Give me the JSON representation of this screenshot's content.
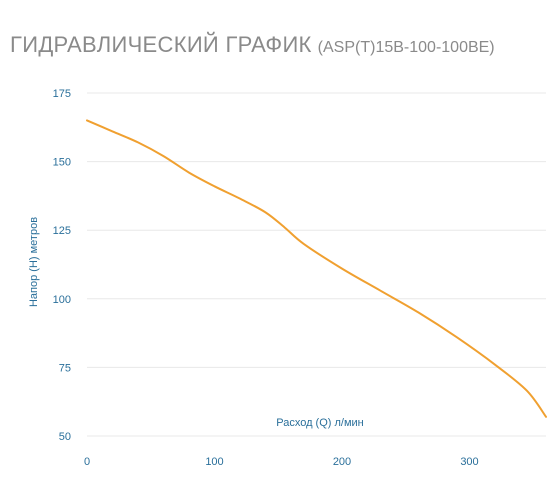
{
  "page": {
    "title_main": "ГИДРАВЛИЧЕСКИЙ ГРАФИК",
    "title_model": "(ASP(T)15B-100-100BE)"
  },
  "colors": {
    "curve": "#f0a030",
    "axis_text": "#2a6f9a",
    "gridline": "#e8e8e8",
    "title": "#8a8a8a"
  },
  "chart_data": {
    "type": "line",
    "title": "ГИДРАВЛИЧЕСКИЙ ГРАФИК (ASP(T)15B-100-100BE)",
    "xlabel": "Расход (Q) л/мин",
    "ylabel": "Напор (H) метров",
    "xlim": [
      0,
      360
    ],
    "ylim": [
      50,
      175
    ],
    "x_ticks": [
      "0",
      "100",
      "200",
      "300"
    ],
    "y_ticks": [
      "50",
      "75",
      "100",
      "125",
      "150",
      "175"
    ],
    "grid": "horizontal",
    "legend": "none",
    "series": [
      {
        "x": [
          0,
          20,
          40,
          60,
          80,
          100,
          120,
          140,
          155,
          170,
          200,
          230,
          260,
          290,
          320,
          345,
          360
        ],
        "y": [
          165,
          161,
          157,
          152,
          146,
          141,
          136.5,
          131.5,
          126,
          120,
          111,
          103,
          95,
          86,
          76,
          66.5,
          57
        ]
      }
    ]
  }
}
